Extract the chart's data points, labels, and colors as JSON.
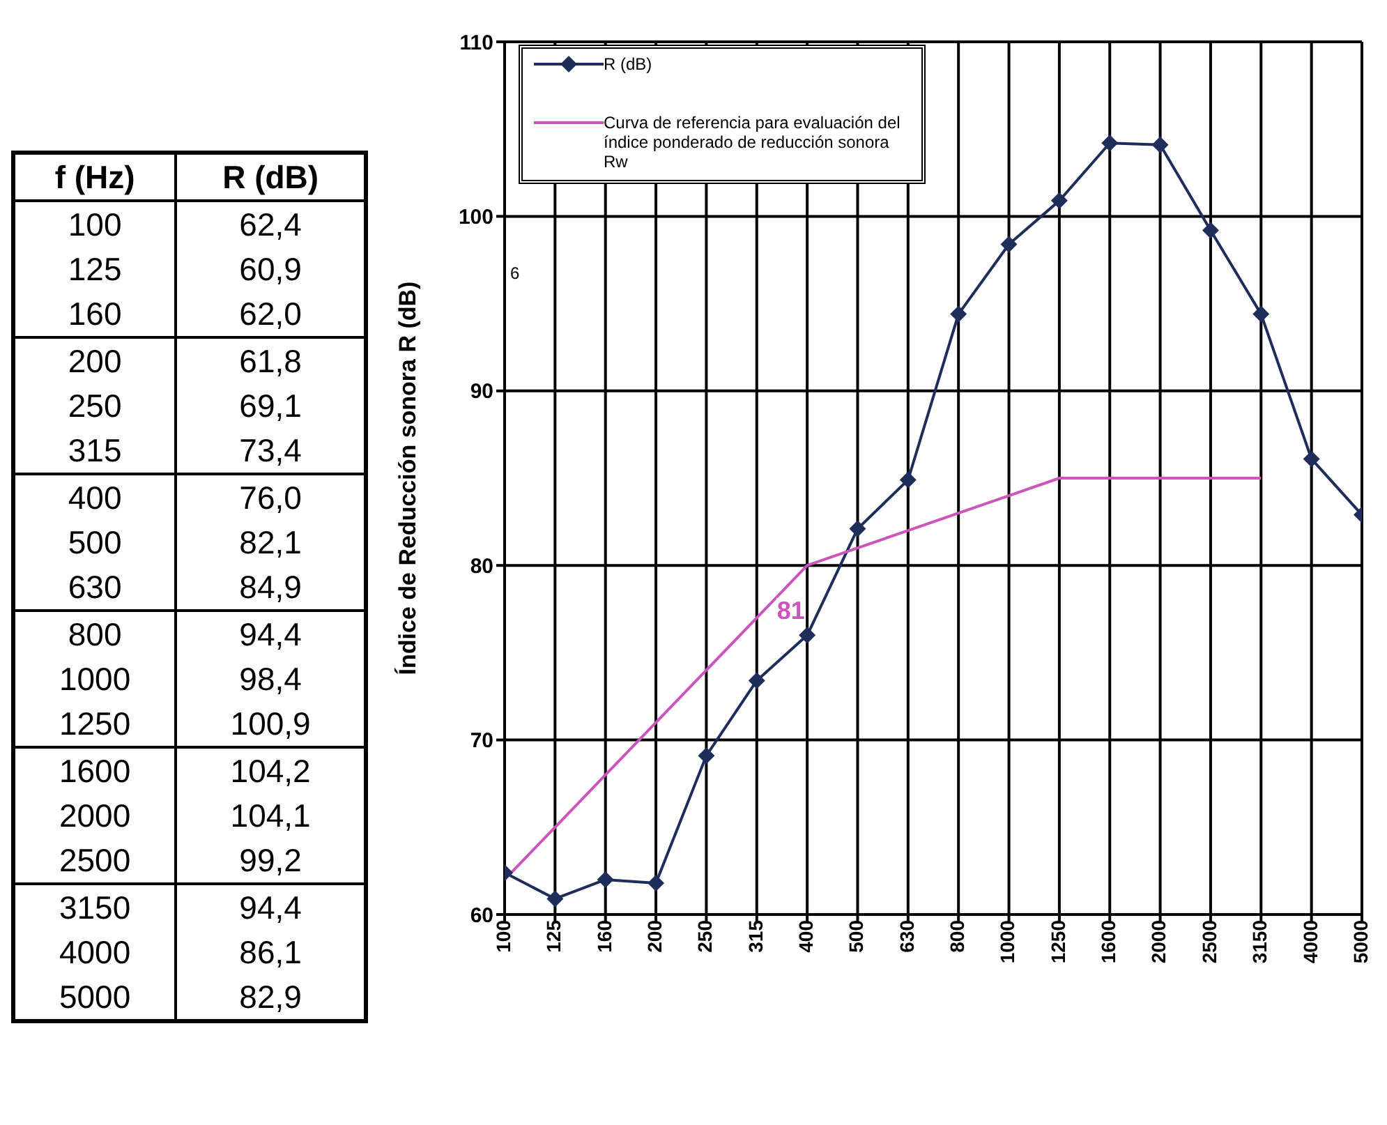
{
  "chart_data": [
    {
      "type": "other",
      "annotations": [
        "f (Hz)",
        "R (dB)",
        "100",
        "62,4",
        "125",
        "60,9",
        "160",
        "62,0",
        "200",
        "61,8",
        "250",
        "69,1",
        "315",
        "73,4",
        "400",
        "76,0",
        "500",
        "82,1",
        "630",
        "84,9",
        "800",
        "94,4",
        "1000",
        "98,4",
        "1250",
        "100,9",
        "1600",
        "104,2",
        "2000",
        "104,1",
        "2500",
        "99,2",
        "3150",
        "94,4",
        "4000",
        "86,1",
        "5000",
        "82,9"
      ]
    },
    {
      "type": "line",
      "ylabel": "Índice de Reducción sonora R (dB)",
      "categories": [
        "100",
        "125",
        "160",
        "200",
        "250",
        "315",
        "400",
        "500",
        "630",
        "800",
        "1000",
        "1250",
        "1600",
        "2000",
        "2500",
        "3150",
        "4000",
        "5000"
      ],
      "series": [
        {
          "name": "R (dB)",
          "color": "#1f2d5a",
          "marker": "diamond",
          "values": [
            62.4,
            60.9,
            62.0,
            61.8,
            69.1,
            73.4,
            76.0,
            82.1,
            84.9,
            94.4,
            98.4,
            100.9,
            104.2,
            104.1,
            99.2,
            94.4,
            86.1,
            82.9
          ]
        },
        {
          "name": "Curva de referencia para evaluación del índice ponderado de reducción sonora Rw",
          "color": "#cc55bb",
          "marker": "none",
          "values": [
            62,
            65,
            68,
            71,
            74,
            77,
            80,
            81,
            82,
            83,
            84,
            85,
            85,
            85,
            85,
            85,
            null,
            null
          ]
        }
      ],
      "ylim": [
        60,
        110
      ],
      "yticks": [
        60,
        70,
        80,
        90,
        100,
        110
      ],
      "grid": true,
      "legend": "top left",
      "annotations": [
        "81",
        "6"
      ]
    }
  ]
}
